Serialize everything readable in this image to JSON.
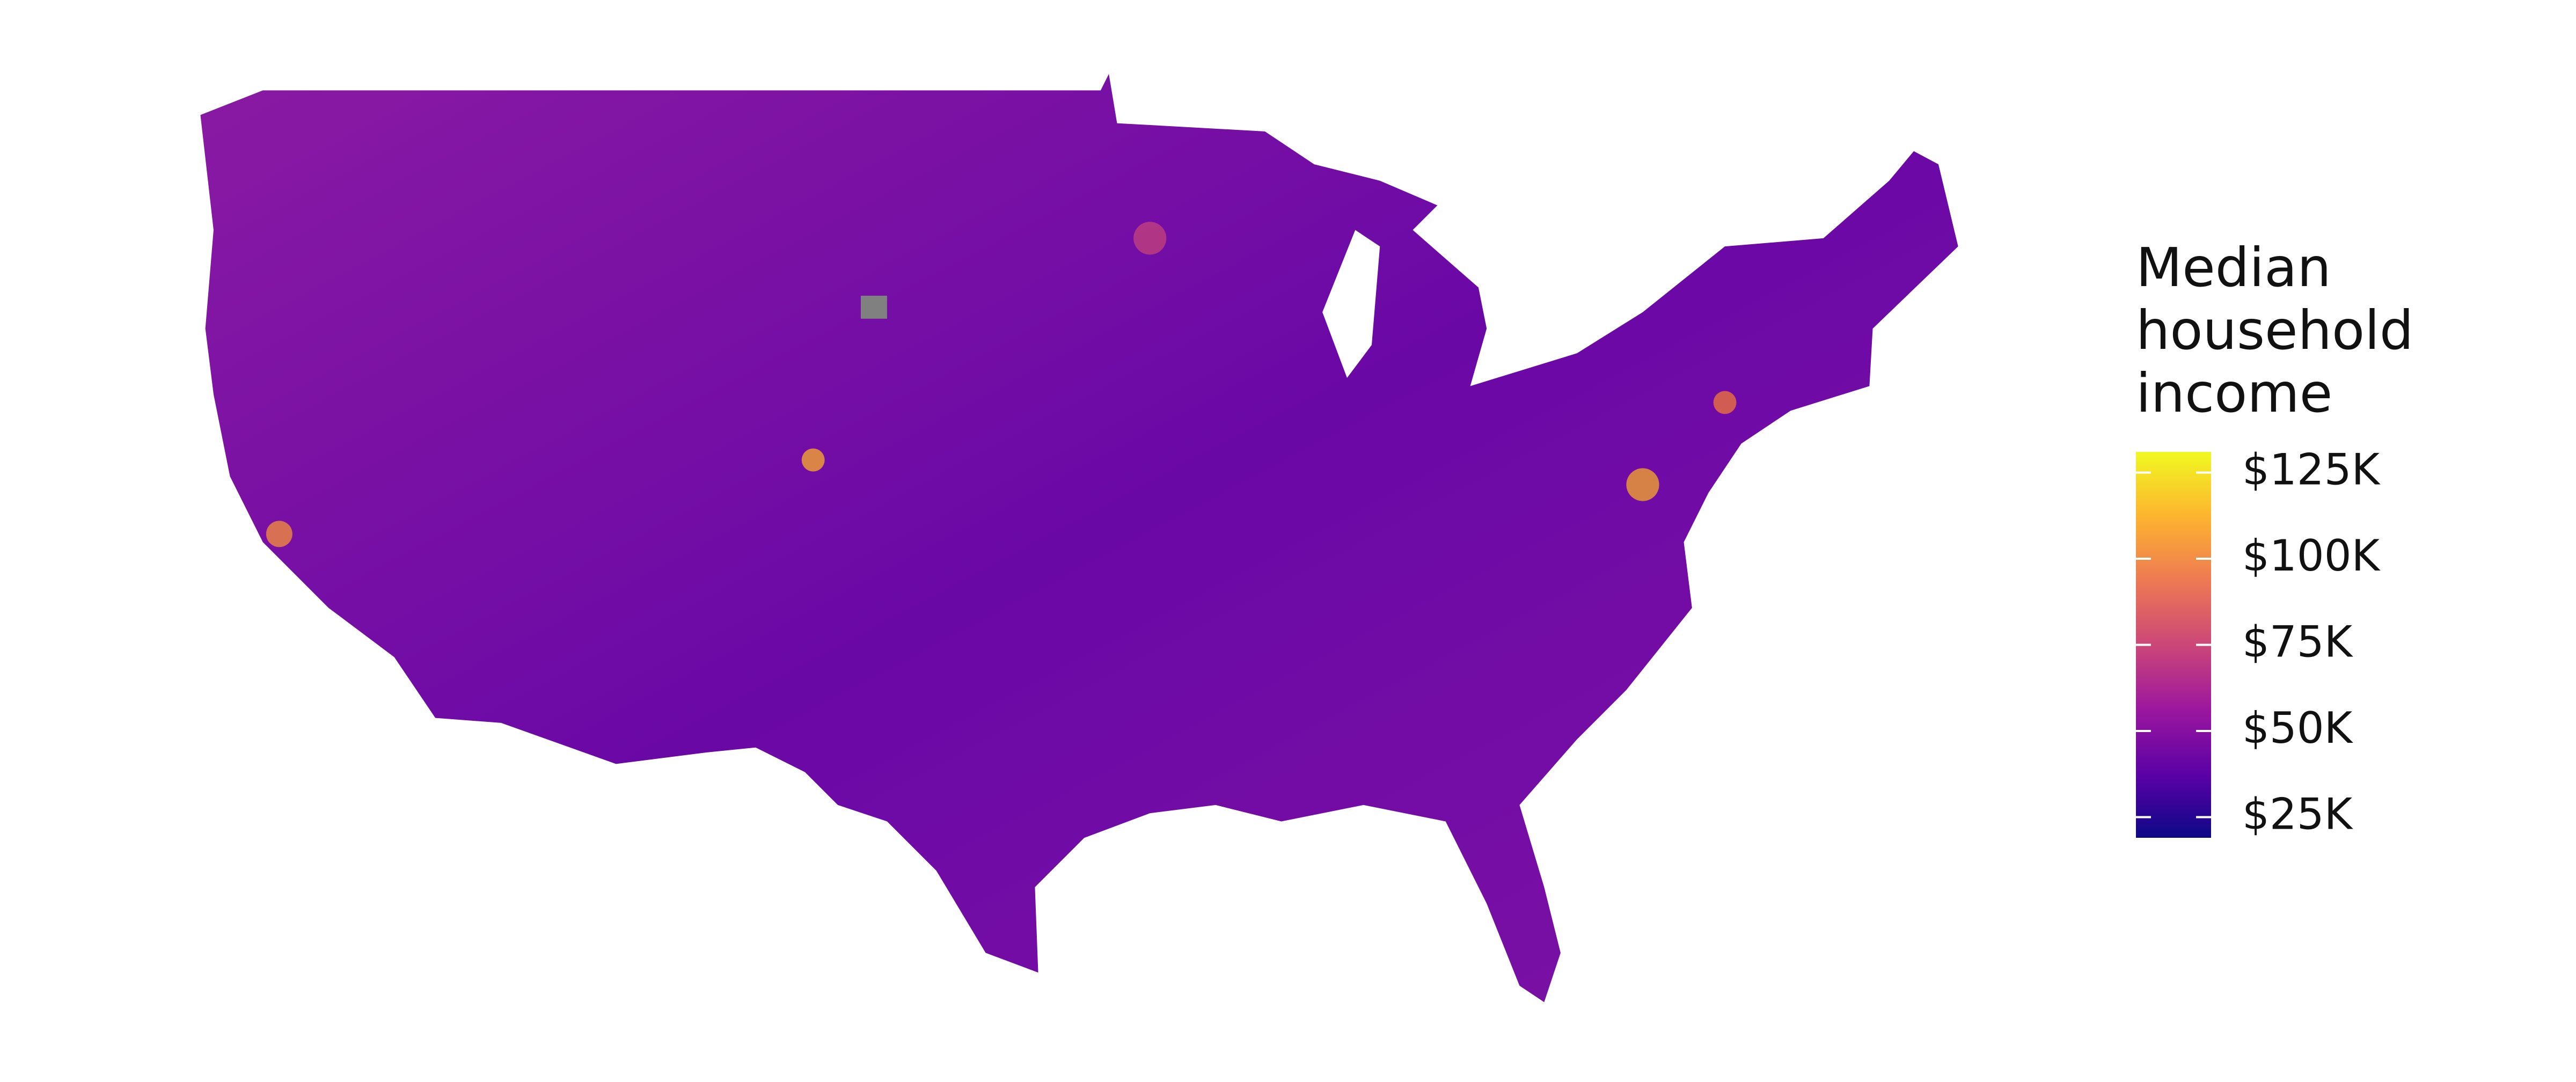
{
  "chart_data": {
    "type": "choropleth",
    "legend_title": "Median household income",
    "colorbar": {
      "lim": [
        19000,
        131000
      ],
      "ticks": [
        {
          "value": 25000,
          "label": "$25K"
        },
        {
          "value": 50000,
          "label": "$50K"
        },
        {
          "value": 75000,
          "label": "$75K"
        },
        {
          "value": 100000,
          "label": "$100K"
        },
        {
          "value": 125000,
          "label": "$125K"
        }
      ],
      "colors": [
        "#0d0887",
        "#5c01a6",
        "#9c179e",
        "#cc4778",
        "#ed7953",
        "#fdb42f",
        "#f0f921"
      ]
    }
  }
}
